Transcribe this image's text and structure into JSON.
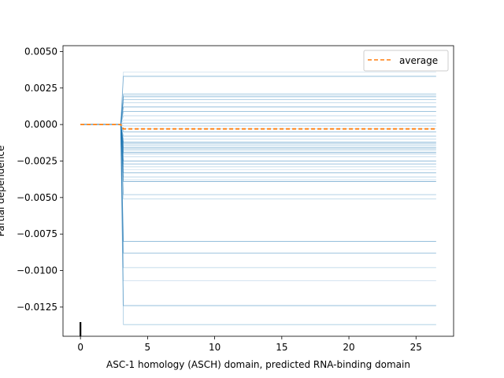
{
  "chart_data": {
    "type": "line",
    "title": "",
    "xlabel": "ASC-1 homology (ASCH) domain, predicted RNA-binding domain",
    "ylabel": "Partial dependence",
    "xlim": [
      -1.3,
      27.8
    ],
    "ylim": [
      -0.0145,
      0.0054
    ],
    "x_ticks": [
      0,
      5,
      10,
      15,
      20,
      25
    ],
    "x_tick_labels": [
      "0",
      "5",
      "10",
      "15",
      "20",
      "25"
    ],
    "y_ticks": [
      0.005,
      0.0025,
      0.0,
      -0.0025,
      -0.005,
      -0.0075,
      -0.01,
      -0.0125
    ],
    "y_tick_labels": [
      "0.0050",
      "0.0025",
      "0.0000",
      "−0.0025",
      "−0.0050",
      "−0.0075",
      "−0.0100",
      "−0.0125"
    ],
    "grid": false,
    "legend": {
      "placement": "top-right",
      "entries": [
        "average"
      ]
    },
    "x": [
      0,
      3,
      3.2,
      26.5
    ],
    "ice_final_values": [
      0.0036,
      0.0033,
      0.0021,
      0.002,
      0.0019,
      0.0017,
      0.0015,
      0.0012,
      0.0009,
      0.0006,
      0.0003,
      0.0001,
      -0.0001,
      -0.0003,
      -0.0005,
      -0.0008,
      -0.001,
      -0.0012,
      -0.0013,
      -0.0014,
      -0.0015,
      -0.0016,
      -0.0017,
      -0.0018,
      -0.0019,
      -0.002,
      -0.0022,
      -0.0025,
      -0.0027,
      -0.0029,
      -0.0031,
      -0.0033,
      -0.0036,
      -0.0038,
      -0.0039,
      -0.0048,
      -0.0051,
      -0.008,
      -0.0088,
      -0.0098,
      -0.0107,
      -0.0124,
      -0.0137
    ],
    "average": {
      "name": "average",
      "values": [
        0.0,
        0.0,
        -0.0003,
        -0.0003
      ]
    },
    "colors": {
      "ice": "#1f77b4",
      "average": "#ff7f0e"
    },
    "rug_x": [
      0
    ]
  }
}
